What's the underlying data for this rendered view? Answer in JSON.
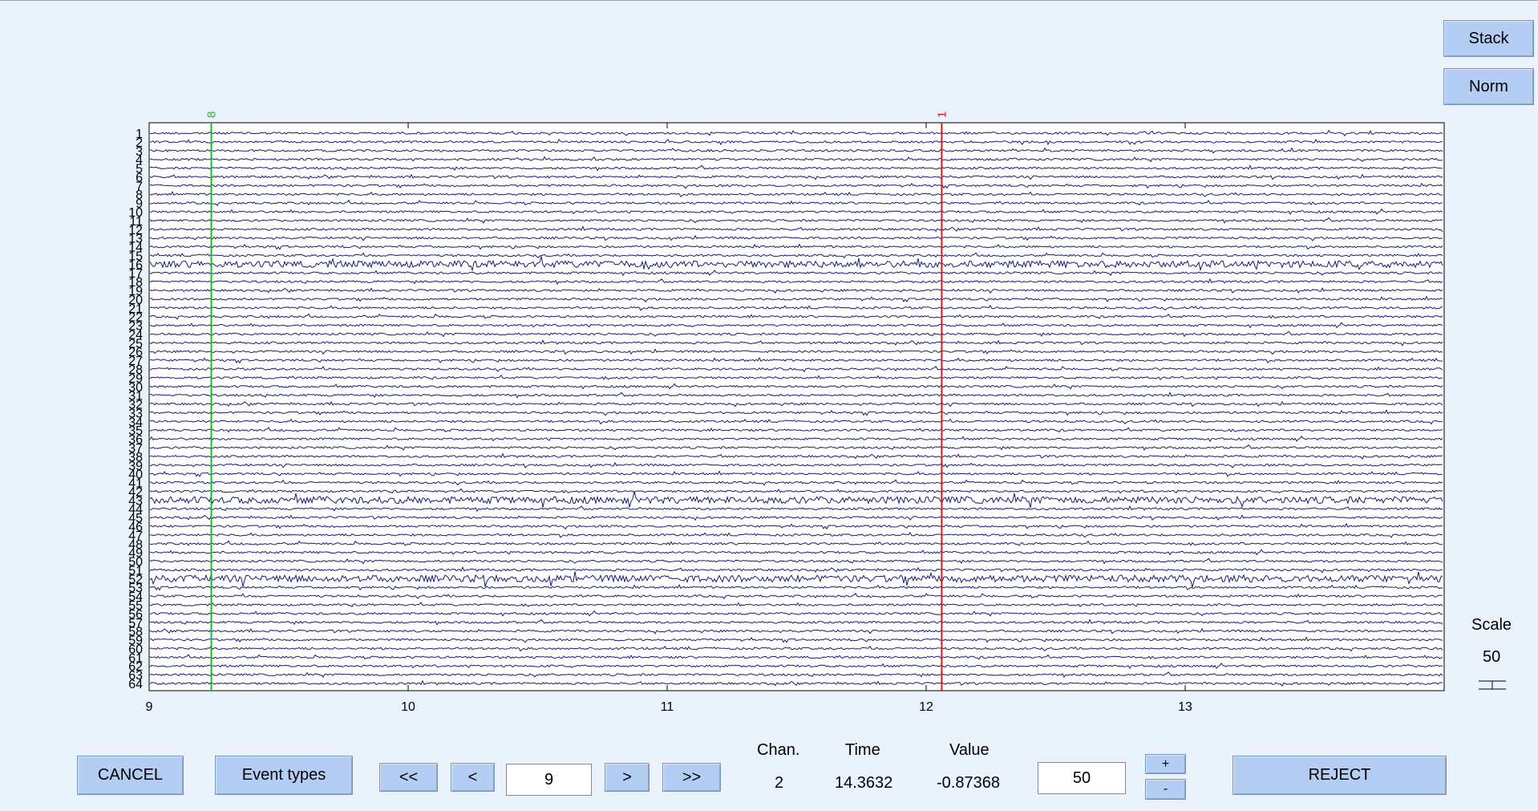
{
  "side_buttons": {
    "stack": "Stack",
    "norm": "Norm"
  },
  "scale": {
    "label": "Scale",
    "value": "50"
  },
  "bottom": {
    "cancel": "CANCEL",
    "event_types": "Event types",
    "first": "<<",
    "prev": "<",
    "window_start": "9",
    "next": ">",
    "last": ">>",
    "chan_label": "Chan.",
    "time_label": "Time",
    "value_label": "Value",
    "chan_value": "2",
    "time_value": "14.3632",
    "value_value": "-0.87368",
    "scale_input": "50",
    "plus": "+",
    "minus": "-",
    "reject": "REJECT"
  },
  "chart_data": {
    "type": "line",
    "xlim": [
      9,
      14
    ],
    "x_ticks": [
      "9",
      "10",
      "11",
      "12",
      "13"
    ],
    "channels": [
      "1",
      "2",
      "3",
      "4",
      "5",
      "6",
      "7",
      "8",
      "9",
      "10",
      "11",
      "12",
      "13",
      "14",
      "15",
      "16",
      "17",
      "18",
      "19",
      "20",
      "21",
      "22",
      "23",
      "24",
      "25",
      "26",
      "27",
      "28",
      "29",
      "30",
      "31",
      "32",
      "33",
      "34",
      "35",
      "36",
      "37",
      "38",
      "39",
      "40",
      "41",
      "42",
      "43",
      "44",
      "45",
      "46",
      "47",
      "48",
      "49",
      "50",
      "51",
      "52",
      "53",
      "54",
      "55",
      "56",
      "57",
      "58",
      "59",
      "60",
      "61",
      "62",
      "63",
      "64"
    ],
    "high_amplitude_channels": [
      "16",
      "43",
      "52"
    ],
    "events": [
      {
        "label": "8",
        "time": 9.24,
        "color": "#1ebd1e"
      },
      {
        "label": "1",
        "time": 12.06,
        "color": "#d41e1e"
      }
    ],
    "trace_color": "#1a1a7a"
  }
}
